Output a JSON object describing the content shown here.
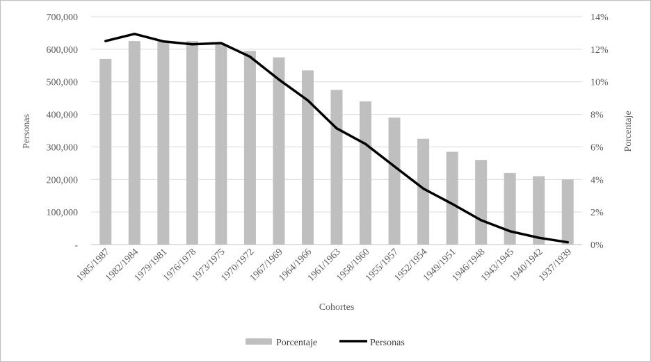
{
  "chart_data": {
    "type": "bar",
    "title": "",
    "xlabel": "Cohortes",
    "ylabel": "Personas",
    "y2label": "Porcentaje",
    "categories": [
      "1985/1987",
      "1982/1984",
      "1979/1981",
      "1976/1978",
      "1973/1975",
      "1970/1972",
      "1967/1969",
      "1964/1966",
      "1961/1963",
      "1958/1960",
      "1955/1957",
      "1952/1954",
      "1949/1951",
      "1946/1948",
      "1943/1945",
      "1940/1942",
      "1937/1939"
    ],
    "series": [
      {
        "name": "Porcentaje",
        "type": "bar",
        "axis": "right",
        "color": "#bfbfbf",
        "values": [
          11.4,
          12.5,
          12.5,
          12.5,
          12.3,
          11.9,
          11.5,
          10.7,
          9.5,
          8.8,
          7.8,
          6.5,
          5.7,
          5.2,
          4.4,
          4.2,
          4.0
        ]
      },
      {
        "name": "Personas",
        "type": "line",
        "axis": "left",
        "color": "#000000",
        "values": [
          625000,
          647000,
          624000,
          615000,
          619000,
          577000,
          507000,
          443000,
          357000,
          309000,
          240000,
          172000,
          125000,
          75000,
          41000,
          21000,
          7000
        ]
      }
    ],
    "ylim": [
      0,
      700000
    ],
    "y2lim": [
      0,
      14
    ],
    "y_ticks": [
      "-",
      "100,000",
      "200,000",
      "300,000",
      "400,000",
      "500,000",
      "600,000",
      "700,000"
    ],
    "y2_ticks": [
      "0%",
      "2%",
      "4%",
      "6%",
      "8%",
      "10%",
      "12%",
      "14%"
    ],
    "grid": true,
    "legend_position": "bottom"
  }
}
